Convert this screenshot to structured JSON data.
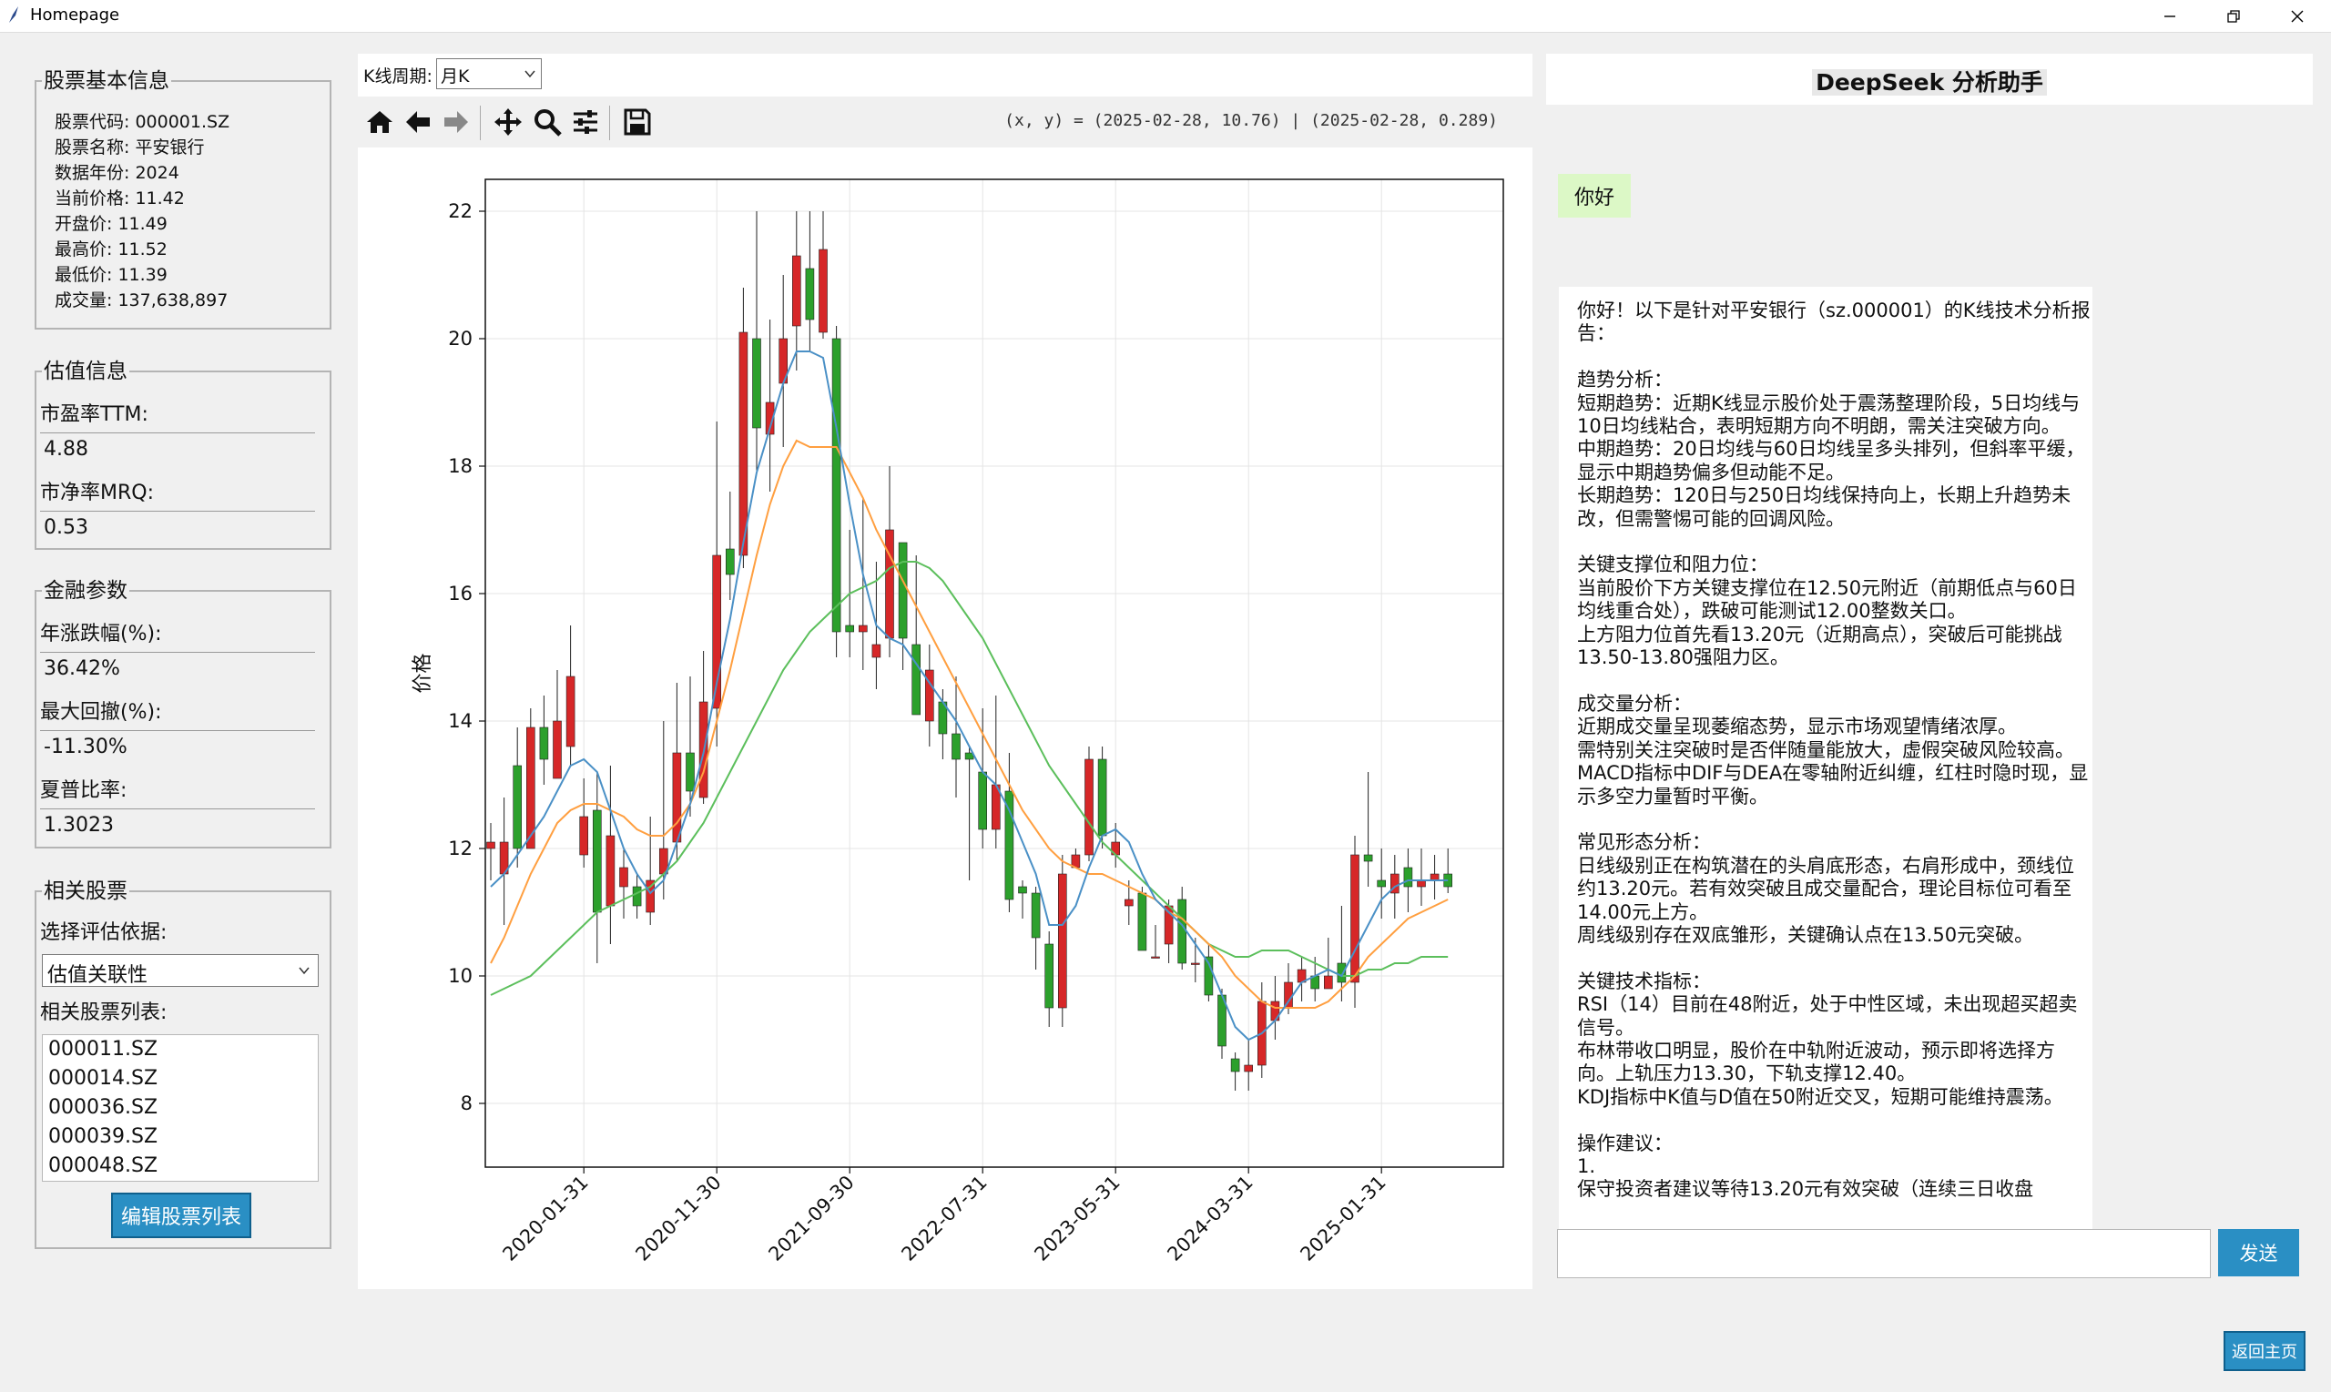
{
  "window": {
    "title": "Homepage"
  },
  "stock_info": {
    "title": "股票基本信息",
    "lines": [
      "股票代码: 000001.SZ",
      "股票名称: 平安银行",
      "数据年份: 2024",
      "当前价格: 11.42",
      "开盘价: 11.49",
      "最高价: 11.52",
      "最低价: 11.39",
      "成交量: 137,638,897"
    ]
  },
  "valuation": {
    "title": "估值信息",
    "pe_label": "市盈率TTM:",
    "pe_value": "4.88",
    "pb_label": "市净率MRQ:",
    "pb_value": "0.53"
  },
  "financial": {
    "title": "金融参数",
    "annual_label": "年涨跌幅(%):",
    "annual_value": "36.42%",
    "drawdown_label": "最大回撤(%):",
    "drawdown_value": "-11.30%",
    "sharpe_label": "夏普比率:",
    "sharpe_value": "1.3023"
  },
  "related": {
    "title": "相关股票",
    "basis_label": "选择评估依据:",
    "basis_value": "估值关联性",
    "list_label": "相关股票列表:",
    "stocks": [
      "000011.SZ",
      "000014.SZ",
      "000036.SZ",
      "000039.SZ",
      "000048.SZ"
    ],
    "edit_button": "编辑股票列表"
  },
  "kline": {
    "period_label": "K线周期:",
    "period_value": "月K",
    "coords": "(x, y) = (2025-02-28, 10.76) | (2025-02-28, 0.289)"
  },
  "toolbar": {
    "icons": [
      "home-icon",
      "back-arrow-icon",
      "forward-arrow-icon",
      "pan-icon",
      "zoom-icon",
      "configure-subplots-icon",
      "save-icon"
    ]
  },
  "colors": {
    "up": "#d62728",
    "down": "#2ca02c",
    "ma_short": "#4a90c6",
    "ma_mid": "#ff9f40",
    "ma_long": "#5cbf5c",
    "accent": "#2a8fc4"
  },
  "chart_data": {
    "type": "candlestick",
    "ylabel": "价格",
    "ylim": [
      7.0,
      22.5
    ],
    "yticks": [
      8,
      10,
      12,
      14,
      16,
      18,
      20,
      22
    ],
    "xtick_labels": [
      "2020-01-31",
      "2020-11-30",
      "2021-09-30",
      "2022-07-31",
      "2023-05-31",
      "2024-03-31",
      "2025-01-31"
    ],
    "grid": true,
    "start_month": "2019-06",
    "ohlc": [
      [
        12.0,
        12.1,
        12.4,
        11.5
      ],
      [
        11.6,
        12.1,
        12.8,
        10.8
      ],
      [
        13.3,
        12.0,
        13.9,
        11.7
      ],
      [
        12.0,
        13.9,
        14.2,
        12.0
      ],
      [
        13.9,
        13.4,
        14.4,
        13.0
      ],
      [
        13.1,
        14.0,
        14.8,
        13.3
      ],
      [
        13.6,
        14.7,
        15.5,
        13.3
      ],
      [
        11.9,
        12.5,
        13.1,
        11.7
      ],
      [
        12.6,
        11.0,
        13.2,
        10.2
      ],
      [
        11.1,
        12.2,
        13.3,
        10.5
      ],
      [
        11.4,
        11.7,
        12.0,
        10.9
      ],
      [
        11.4,
        11.1,
        11.6,
        10.9
      ],
      [
        11.0,
        11.5,
        12.5,
        10.8
      ],
      [
        11.6,
        12.0,
        14.0,
        11.2
      ],
      [
        12.1,
        13.5,
        14.6,
        11.8
      ],
      [
        13.5,
        12.9,
        14.7,
        12.5
      ],
      [
        12.8,
        14.3,
        15.1,
        12.7
      ],
      [
        14.2,
        16.6,
        18.7,
        13.6
      ],
      [
        16.7,
        16.3,
        17.6,
        15.9
      ],
      [
        16.6,
        20.1,
        20.8,
        16.4
      ],
      [
        20.0,
        18.6,
        22.0,
        17.9
      ],
      [
        18.5,
        19.0,
        20.3,
        17.6
      ],
      [
        19.3,
        20.0,
        21.0,
        18.3
      ],
      [
        20.2,
        21.3,
        22.0,
        19.5
      ],
      [
        21.1,
        20.3,
        22.0,
        19.8
      ],
      [
        20.1,
        21.4,
        22.0,
        20.0
      ],
      [
        20.0,
        15.4,
        20.2,
        15.0
      ],
      [
        15.5,
        15.4,
        17.0,
        15.0
      ],
      [
        15.4,
        15.5,
        17.5,
        14.8
      ],
      [
        15.0,
        15.2,
        16.5,
        14.5
      ],
      [
        15.3,
        17.0,
        18.0,
        15.0
      ],
      [
        16.8,
        15.3,
        16.4,
        14.8
      ],
      [
        15.2,
        14.1,
        16.6,
        14.2
      ],
      [
        14.0,
        14.8,
        15.2,
        13.6
      ],
      [
        14.3,
        13.8,
        14.5,
        13.4
      ],
      [
        13.8,
        13.4,
        14.7,
        12.8
      ],
      [
        13.5,
        13.4,
        13.6,
        11.5
      ],
      [
        13.2,
        12.3,
        14.2,
        12.0
      ],
      [
        12.3,
        13.0,
        14.4,
        12.0
      ],
      [
        12.9,
        11.2,
        13.5,
        11.0
      ],
      [
        11.4,
        11.3,
        11.5,
        10.9
      ],
      [
        11.3,
        10.6,
        11.4,
        10.1
      ],
      [
        10.5,
        9.5,
        10.7,
        9.2
      ],
      [
        9.5,
        11.6,
        11.9,
        9.2
      ],
      [
        11.7,
        11.9,
        12.0,
        11.7
      ],
      [
        11.9,
        13.4,
        13.6,
        11.8
      ],
      [
        13.4,
        12.2,
        13.6,
        12.0
      ],
      [
        11.9,
        12.1,
        12.4,
        11.7
      ],
      [
        11.1,
        11.2,
        11.5,
        10.8
      ],
      [
        11.3,
        10.4,
        11.4,
        10.4
      ],
      [
        10.3,
        10.3,
        10.8,
        10.3
      ],
      [
        10.5,
        11.1,
        11.2,
        10.2
      ],
      [
        11.2,
        10.2,
        11.4,
        10.1
      ],
      [
        10.2,
        10.2,
        10.6,
        9.9
      ],
      [
        10.3,
        9.7,
        10.5,
        9.6
      ],
      [
        9.7,
        8.9,
        9.8,
        8.7
      ],
      [
        8.7,
        8.5,
        8.8,
        8.2
      ],
      [
        8.5,
        8.6,
        9.0,
        8.2
      ],
      [
        8.6,
        9.6,
        9.9,
        8.4
      ],
      [
        9.3,
        9.6,
        10.0,
        9.0
      ],
      [
        9.5,
        9.9,
        10.2,
        9.4
      ],
      [
        9.9,
        10.1,
        10.3,
        9.6
      ],
      [
        10.0,
        9.8,
        10.3,
        9.6
      ],
      [
        9.8,
        10.0,
        10.6,
        9.9
      ],
      [
        10.2,
        9.9,
        11.1,
        9.6
      ],
      [
        9.9,
        11.9,
        12.2,
        9.5
      ],
      [
        11.9,
        11.8,
        13.2,
        11.4
      ],
      [
        11.5,
        11.4,
        12.0,
        10.9
      ],
      [
        11.3,
        11.6,
        11.9,
        10.9
      ],
      [
        11.7,
        11.4,
        12.0,
        11.0
      ],
      [
        11.4,
        11.5,
        12.0,
        11.1
      ],
      [
        11.5,
        11.6,
        11.9,
        11.2
      ],
      [
        11.6,
        11.4,
        12.0,
        11.3
      ]
    ],
    "ma_short": [
      11.4,
      11.6,
      11.9,
      12.2,
      12.5,
      12.9,
      13.3,
      13.4,
      13.2,
      12.6,
      12.0,
      11.6,
      11.3,
      11.5,
      12.1,
      12.7,
      13.5,
      14.6,
      15.6,
      16.8,
      17.9,
      18.6,
      19.3,
      19.8,
      19.8,
      19.7,
      18.6,
      17.4,
      16.3,
      15.5,
      15.3,
      15.2,
      14.9,
      14.6,
      14.3,
      14.0,
      13.6,
      13.2,
      13.0,
      12.6,
      12.1,
      11.6,
      10.8,
      10.8,
      11.1,
      11.7,
      12.2,
      12.3,
      12.1,
      11.6,
      11.2,
      11.0,
      10.8,
      10.5,
      10.2,
      9.7,
      9.2,
      9.0,
      9.1,
      9.3,
      9.6,
      9.9,
      10.0,
      10.1,
      10.0,
      10.4,
      10.8,
      11.2,
      11.4,
      11.5,
      11.5,
      11.5,
      11.5
    ],
    "ma_mid": [
      10.2,
      10.6,
      11.1,
      11.6,
      12.0,
      12.4,
      12.6,
      12.7,
      12.7,
      12.6,
      12.5,
      12.3,
      12.2,
      12.2,
      12.4,
      12.7,
      13.2,
      14.0,
      14.8,
      15.7,
      16.6,
      17.4,
      18.0,
      18.4,
      18.3,
      18.3,
      18.3,
      17.9,
      17.5,
      17.0,
      16.6,
      16.2,
      15.8,
      15.4,
      15.0,
      14.6,
      14.2,
      13.8,
      13.4,
      13.0,
      12.6,
      12.3,
      12.0,
      11.8,
      11.7,
      11.6,
      11.6,
      11.5,
      11.4,
      11.3,
      11.2,
      11.0,
      10.9,
      10.7,
      10.5,
      10.3,
      10.0,
      9.8,
      9.6,
      9.5,
      9.5,
      9.5,
      9.5,
      9.6,
      9.8,
      10.0,
      10.3,
      10.5,
      10.7,
      10.9,
      11.0,
      11.1,
      11.2
    ],
    "ma_long": [
      9.7,
      9.8,
      9.9,
      10.0,
      10.2,
      10.4,
      10.6,
      10.8,
      11.0,
      11.1,
      11.2,
      11.3,
      11.4,
      11.6,
      11.8,
      12.1,
      12.4,
      12.8,
      13.2,
      13.6,
      14.0,
      14.4,
      14.8,
      15.1,
      15.4,
      15.6,
      15.8,
      16.0,
      16.1,
      16.2,
      16.4,
      16.5,
      16.5,
      16.4,
      16.2,
      15.9,
      15.6,
      15.3,
      14.9,
      14.5,
      14.1,
      13.7,
      13.3,
      13.0,
      12.7,
      12.4,
      12.1,
      11.9,
      11.7,
      11.5,
      11.3,
      11.1,
      10.9,
      10.7,
      10.5,
      10.4,
      10.3,
      10.3,
      10.4,
      10.4,
      10.4,
      10.3,
      10.2,
      10.1,
      10.0,
      10.0,
      10.1,
      10.1,
      10.2,
      10.2,
      10.3,
      10.3,
      10.3
    ]
  },
  "assistant": {
    "title": "DeepSeek 分析助手",
    "user_message": "你好",
    "paragraphs": [
      "你好！以下是针对平安银行（sz.000001）的K线技术分析报告：",
      "",
      "趋势分析：",
      "短期趋势：近期K线显示股价处于震荡整理阶段，5日均线与10日均线粘合，表明短期方向不明朗，需关注突破方向。",
      "中期趋势：20日均线与60日均线呈多头排列，但斜率平缓，显示中期趋势偏多但动能不足。",
      "长期趋势：120日与250日均线保持向上，长期上升趋势未改，但需警惕可能的回调风险。",
      "",
      "关键支撑位和阻力位：",
      "当前股价下方关键支撑位在12.50元附近（前期低点与60日均线重合处），跌破可能测试12.00整数关口。",
      "上方阻力位首先看13.20元（近期高点），突破后可能挑战13.50-13.80强阻力区。",
      "",
      "成交量分析：",
      "近期成交量呈现萎缩态势，显示市场观望情绪浓厚。",
      "需特别关注突破时是否伴随量能放大，虚假突破风险较高。",
      "MACD指标中DIF与DEA在零轴附近纠缠，红柱时隐时现，显示多空力量暂时平衡。",
      "",
      "常见形态分析：",
      "日线级别正在构筑潜在的头肩底形态，右肩形成中，颈线位约13.20元。若有效突破且成交量配合，理论目标位可看至14.00元上方。",
      "周线级别存在双底雏形，关键确认点在13.50元突破。",
      "",
      "关键技术指标：",
      "RSI（14）目前在48附近，处于中性区域，未出现超买超卖信号。",
      "布林带收口明显，股价在中轨附近波动，预示即将选择方向。上轨压力13.30，下轨支撑12.40。",
      "KDJ指标中K值与D值在50附近交叉，短期可能维持震荡。",
      "",
      "操作建议：",
      "1.",
      "保守投资者建议等待13.20元有效突破（连续三日收盘"
    ],
    "send_button": "发送",
    "input_value": ""
  },
  "footer": {
    "home_button": "返回主页"
  }
}
